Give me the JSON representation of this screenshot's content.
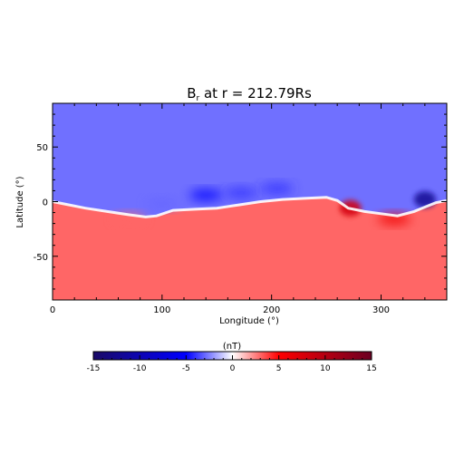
{
  "chart_data": [
    {
      "type": "heatmap",
      "title_main": "B",
      "title_sub": "r",
      "title_rest": " at r = 212.79Rs",
      "xlabel": "Longitude (°)",
      "ylabel": "Latitude (°)",
      "xlim": [
        0,
        360
      ],
      "ylim": [
        -90,
        90
      ],
      "xticks": [
        0,
        100,
        200,
        300
      ],
      "yticks": [
        -50,
        0,
        50
      ],
      "field": {
        "north_value": -2.8,
        "south_value": 3.0,
        "neutral_line": {
          "longitude": [
            0,
            10,
            30,
            50,
            70,
            85,
            95,
            110,
            130,
            150,
            170,
            190,
            210,
            230,
            250,
            260,
            270,
            285,
            300,
            315,
            330,
            340,
            350,
            360
          ],
          "latitude": [
            0,
            -2,
            -6,
            -9,
            -12,
            -14,
            -13,
            -8,
            -7,
            -6,
            -3,
            0,
            2,
            3,
            4,
            1,
            -6,
            -9,
            -11,
            -13,
            -9,
            -5,
            -1,
            1
          ]
        },
        "features": [
          {
            "longitude": 340,
            "latitude": 2,
            "value": -12
          },
          {
            "longitude": 272,
            "latitude": -6,
            "value": 8
          },
          {
            "longitude": 312,
            "latitude": -16,
            "value": 6
          },
          {
            "longitude": 140,
            "latitude": 6,
            "value": -5
          },
          {
            "longitude": 172,
            "latitude": 8,
            "value": -4
          },
          {
            "longitude": 205,
            "latitude": 12,
            "value": -4
          },
          {
            "longitude": 100,
            "latitude": -2,
            "value": -3
          },
          {
            "longitude": 70,
            "latitude": -16,
            "value": 3
          }
        ]
      }
    },
    {
      "type": "colorbar",
      "label": "(nT)",
      "range": [
        -15,
        15
      ],
      "ticks": [
        -15,
        -10,
        -5,
        0,
        5,
        10,
        15
      ],
      "colors": [
        "#1a0a66",
        "#0000ff",
        "#ffffff",
        "#ff0000",
        "#6b0022"
      ]
    }
  ]
}
